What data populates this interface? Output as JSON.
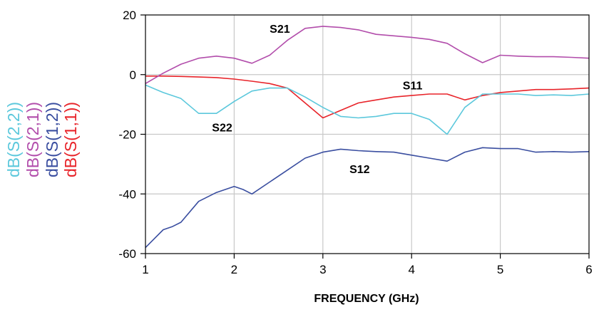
{
  "chart_data": {
    "type": "line",
    "xlabel": "FREQUENCY (GHz)",
    "ylabel": "",
    "xlim": [
      1,
      6
    ],
    "ylim": [
      -60,
      20
    ],
    "xticks": [
      1,
      2,
      3,
      4,
      5,
      6
    ],
    "yticks": [
      20,
      0,
      -20,
      -40,
      -60
    ],
    "grid": true,
    "legend_position": "left, vertical text",
    "series": [
      {
        "name": "dB(S(1,1))",
        "color": "#e8242a",
        "x": [
          1.0,
          1.2,
          1.4,
          1.6,
          1.8,
          2.0,
          2.2,
          2.4,
          2.6,
          2.8,
          3.0,
          3.2,
          3.4,
          3.6,
          3.8,
          4.0,
          4.2,
          4.4,
          4.6,
          4.8,
          5.0,
          5.2,
          5.4,
          5.6,
          5.8,
          6.0
        ],
        "values": [
          -0.5,
          -0.5,
          -0.6,
          -0.8,
          -1.0,
          -1.5,
          -2.2,
          -3.0,
          -4.5,
          -9.5,
          -14.5,
          -12.0,
          -9.5,
          -8.5,
          -7.5,
          -7.0,
          -6.5,
          -6.5,
          -8.5,
          -7.0,
          -6.0,
          -5.5,
          -5.0,
          -5.0,
          -4.8,
          -4.5
        ]
      },
      {
        "name": "dB(S(1,2))",
        "color": "#3a4ea0",
        "x": [
          1.0,
          1.1,
          1.2,
          1.3,
          1.4,
          1.6,
          1.8,
          2.0,
          2.1,
          2.2,
          2.4,
          2.6,
          2.8,
          3.0,
          3.2,
          3.4,
          3.6,
          3.8,
          4.0,
          4.2,
          4.4,
          4.6,
          4.8,
          5.0,
          5.2,
          5.4,
          5.6,
          5.8,
          6.0
        ],
        "values": [
          -58.0,
          -55.0,
          -52.0,
          -51.0,
          -49.5,
          -42.5,
          -39.5,
          -37.5,
          -38.5,
          -40.0,
          -36.0,
          -32.0,
          -28.0,
          -26.0,
          -25.0,
          -25.5,
          -25.8,
          -26.0,
          -27.0,
          -28.0,
          -29.0,
          -26.0,
          -24.5,
          -24.8,
          -24.8,
          -26.0,
          -25.8,
          -26.0,
          -25.8
        ]
      },
      {
        "name": "dB(S(2,1))",
        "color": "#b24dab",
        "x": [
          1.0,
          1.2,
          1.4,
          1.6,
          1.8,
          2.0,
          2.2,
          2.4,
          2.6,
          2.8,
          3.0,
          3.2,
          3.4,
          3.6,
          3.8,
          4.0,
          4.2,
          4.4,
          4.6,
          4.8,
          5.0,
          5.2,
          5.4,
          5.6,
          5.8,
          6.0
        ],
        "values": [
          -3.0,
          0.5,
          3.5,
          5.5,
          6.2,
          5.5,
          3.8,
          6.5,
          11.5,
          15.5,
          16.2,
          15.8,
          15.0,
          13.5,
          13.0,
          12.5,
          11.8,
          10.5,
          7.0,
          4.0,
          6.5,
          6.2,
          6.0,
          6.0,
          5.8,
          5.5
        ]
      },
      {
        "name": "dB(S(2,2))",
        "color": "#5cc8dc",
        "x": [
          1.0,
          1.2,
          1.4,
          1.6,
          1.8,
          2.0,
          2.2,
          2.4,
          2.6,
          2.8,
          3.0,
          3.2,
          3.4,
          3.6,
          3.8,
          4.0,
          4.2,
          4.4,
          4.6,
          4.8,
          5.0,
          5.2,
          5.4,
          5.6,
          5.8,
          6.0
        ],
        "values": [
          -3.5,
          -6.0,
          -8.0,
          -13.0,
          -13.0,
          -9.0,
          -5.5,
          -4.5,
          -4.5,
          -7.5,
          -11.0,
          -14.0,
          -14.5,
          -14.0,
          -13.0,
          -13.0,
          -15.0,
          -20.0,
          -11.0,
          -6.5,
          -6.5,
          -6.5,
          -7.0,
          -6.8,
          -7.0,
          -6.5
        ]
      }
    ],
    "annotations": [
      {
        "text": "S21",
        "x": 2.4,
        "y": 14
      },
      {
        "text": "S11",
        "x": 3.9,
        "y": -5
      },
      {
        "text": "S22",
        "x": 1.75,
        "y": -19
      },
      {
        "text": "S12",
        "x": 3.3,
        "y": -33
      }
    ]
  }
}
